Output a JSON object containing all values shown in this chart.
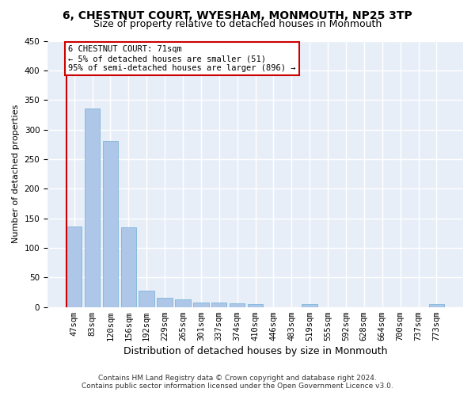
{
  "title1": "6, CHESTNUT COURT, WYESHAM, MONMOUTH, NP25 3TP",
  "title2": "Size of property relative to detached houses in Monmouth",
  "xlabel": "Distribution of detached houses by size in Monmouth",
  "ylabel": "Number of detached properties",
  "footnote1": "Contains HM Land Registry data © Crown copyright and database right 2024.",
  "footnote2": "Contains public sector information licensed under the Open Government Licence v3.0.",
  "annotation_line1": "6 CHESTNUT COURT: 71sqm",
  "annotation_line2": "← 5% of detached houses are smaller (51)",
  "annotation_line3": "95% of semi-detached houses are larger (896) →",
  "bar_labels": [
    "47sqm",
    "83sqm",
    "120sqm",
    "156sqm",
    "192sqm",
    "229sqm",
    "265sqm",
    "301sqm",
    "337sqm",
    "374sqm",
    "410sqm",
    "446sqm",
    "483sqm",
    "519sqm",
    "555sqm",
    "592sqm",
    "628sqm",
    "664sqm",
    "700sqm",
    "737sqm",
    "773sqm"
  ],
  "bar_values": [
    136,
    336,
    281,
    135,
    28,
    16,
    13,
    8,
    7,
    6,
    5,
    0,
    0,
    5,
    0,
    0,
    0,
    0,
    0,
    0,
    5
  ],
  "bar_color": "#aec6e8",
  "bar_edge_color": "#6aaed6",
  "vline_color": "#cc0000",
  "annotation_box_color": "#cc0000",
  "ylim": [
    0,
    450
  ],
  "yticks": [
    0,
    50,
    100,
    150,
    200,
    250,
    300,
    350,
    400,
    450
  ],
  "background_color": "#e8eef8",
  "grid_color": "#ffffff",
  "title_fontsize": 10,
  "subtitle_fontsize": 9,
  "ylabel_fontsize": 8,
  "xlabel_fontsize": 9,
  "tick_fontsize": 7.5,
  "annotation_fontsize": 7.5,
  "footnote_fontsize": 6.5
}
